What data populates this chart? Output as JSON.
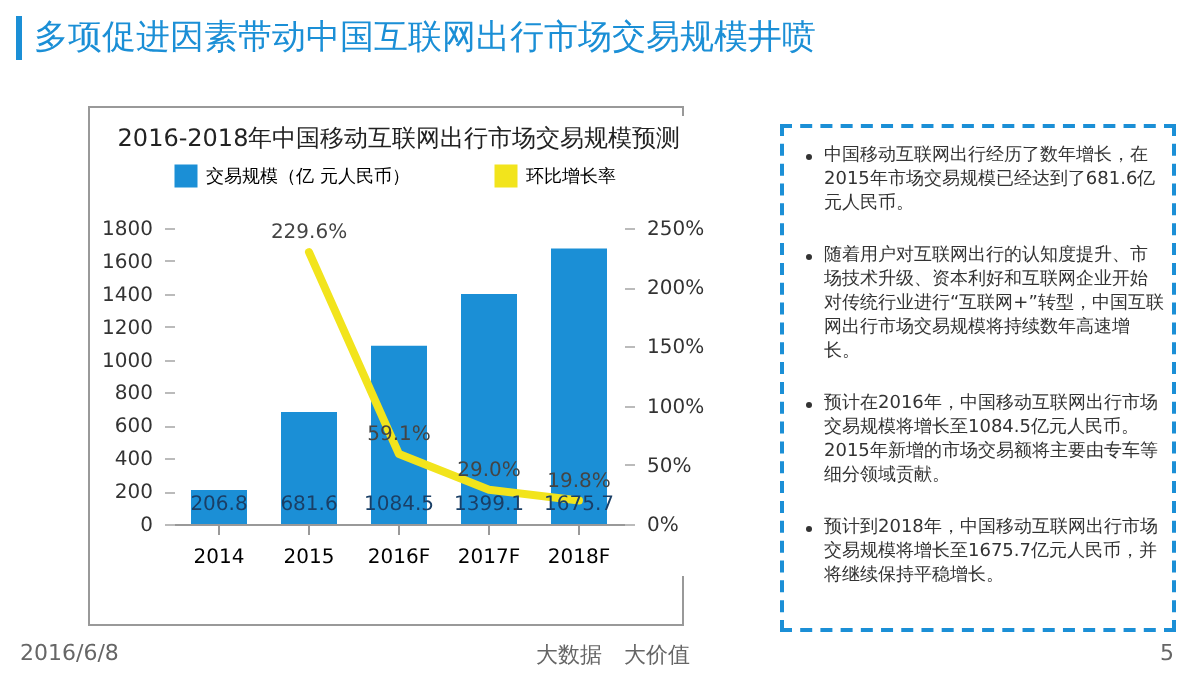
{
  "chart_data": {
    "type": "bar",
    "title": "多项促进因素带动中国互联网出行市场交易规模井喷",
    "subtitle": "2016-2018年中国移动互联网出行市场交易规模预测",
    "categories": [
      "2014",
      "2015",
      "2016F",
      "2017F",
      "2018F"
    ],
    "series": [
      {
        "name": "交易规模（亿 元人民币）",
        "color": "#1b8fd6",
        "values": [
          206.8,
          681.6,
          1084.5,
          1399.1,
          1675.7
        ],
        "value_labels": [
          "206.8",
          "681.6",
          "1084.5",
          "1399.1",
          "1675.7"
        ]
      },
      {
        "name": "环比增长率",
        "type": "line",
        "axis": "y2",
        "color": "#f2e41c",
        "values": [
          null,
          229.6,
          59.1,
          29.0,
          19.8
        ],
        "value_labels": [
          null,
          "229.6%",
          "59.1%",
          "29.0%",
          "19.8%"
        ]
      }
    ],
    "ylim": [
      0,
      1800
    ],
    "yticks": [
      0,
      200,
      400,
      600,
      800,
      1000,
      1200,
      1400,
      1600,
      1800
    ],
    "y2lim": [
      0,
      250
    ],
    "y2ticks": [
      {
        "value": 0,
        "label": "0%"
      },
      {
        "value": 50,
        "label": "50%"
      },
      {
        "value": 100,
        "label": "100%"
      },
      {
        "value": 150,
        "label": "150%"
      },
      {
        "value": 200,
        "label": "200%"
      },
      {
        "value": 250,
        "label": "250%"
      }
    ],
    "legend": "top",
    "annotations": [
      "中国移动互联网出行经历了数年增长，在2015年市场交易规模已经达到了681.6亿元人民币。",
      "随着用户对互联网出行的认知度提升、市场技术升级、资本利好和互联网企业开始对传统行业进行“互联网+”转型，中国互联网出行市场交易规模将持续数年高速增长。",
      "预计在2016年，中国移动互联网出行市场交易规模将增长至1084.5亿元人民币。2015年新增的市场交易额将主要由专车等细分领域贡献。",
      "预计到2018年，中国移动互联网出行市场交易规模将增长至1675.7亿元人民币，并将继续保持平稳增长。",
      "2016/6/8",
      "大数据　大价值",
      "5"
    ]
  }
}
